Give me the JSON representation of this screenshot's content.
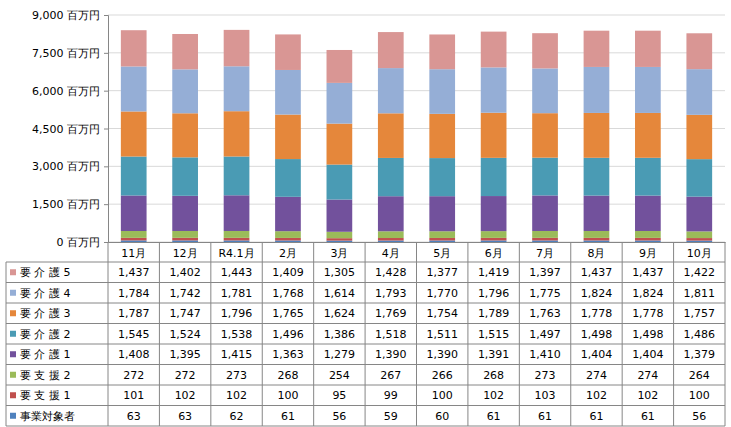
{
  "chart_data": {
    "type": "bar",
    "stacked": true,
    "grid": true,
    "legend": "bottom",
    "categories": [
      "11月",
      "12月",
      "R4.1月",
      "2月",
      "3月",
      "4月",
      "5月",
      "6月",
      "7月",
      "8月",
      "9月",
      "10月"
    ],
    "ylim": [
      0,
      9000
    ],
    "yticks": [
      {
        "value": 0,
        "label": "0 百万円"
      },
      {
        "value": 1500,
        "label": "1,500 百万円"
      },
      {
        "value": 3000,
        "label": "3,000 百万円"
      },
      {
        "value": 4500,
        "label": "4,500 百万円"
      },
      {
        "value": 6000,
        "label": "6,000 百万円"
      },
      {
        "value": 7500,
        "label": "7,500 百万円"
      },
      {
        "value": 9000,
        "label": "9,000 百万円"
      }
    ],
    "series": [
      {
        "name": "事業対象者",
        "color": "#4f81bd",
        "values": [
          63,
          63,
          62,
          61,
          56,
          59,
          60,
          61,
          61,
          61,
          61,
          56
        ],
        "value_labels": [
          "63",
          "63",
          "62",
          "61",
          "56",
          "59",
          "60",
          "61",
          "61",
          "61",
          "61",
          "56"
        ]
      },
      {
        "name": "要 支 援 1",
        "color": "#c0504d",
        "values": [
          101,
          102,
          102,
          100,
          95,
          99,
          100,
          102,
          103,
          102,
          102,
          100
        ],
        "value_labels": [
          "101",
          "102",
          "102",
          "100",
          "95",
          "99",
          "100",
          "102",
          "103",
          "102",
          "102",
          "100"
        ]
      },
      {
        "name": "要 支 援 2",
        "color": "#9bbb59",
        "values": [
          272,
          272,
          273,
          268,
          254,
          267,
          266,
          268,
          273,
          274,
          274,
          264
        ],
        "value_labels": [
          "272",
          "272",
          "273",
          "268",
          "254",
          "267",
          "266",
          "268",
          "273",
          "274",
          "274",
          "264"
        ]
      },
      {
        "name": "要 介 護 1",
        "color": "#72519c",
        "values": [
          1408,
          1395,
          1415,
          1363,
          1279,
          1390,
          1390,
          1391,
          1410,
          1404,
          1404,
          1379
        ],
        "value_labels": [
          "1,408",
          "1,395",
          "1,415",
          "1,363",
          "1,279",
          "1,390",
          "1,390",
          "1,391",
          "1,410",
          "1,404",
          "1,404",
          "1,379"
        ]
      },
      {
        "name": "要 介 護 2",
        "color": "#4a9bb4",
        "values": [
          1545,
          1524,
          1538,
          1496,
          1386,
          1518,
          1511,
          1515,
          1497,
          1498,
          1498,
          1486
        ],
        "value_labels": [
          "1,545",
          "1,524",
          "1,538",
          "1,496",
          "1,386",
          "1,518",
          "1,511",
          "1,515",
          "1,497",
          "1,498",
          "1,498",
          "1,486"
        ]
      },
      {
        "name": "要 介 護 3",
        "color": "#e5873b",
        "values": [
          1787,
          1747,
          1796,
          1765,
          1624,
          1769,
          1754,
          1789,
          1763,
          1778,
          1778,
          1757
        ],
        "value_labels": [
          "1,787",
          "1,747",
          "1,796",
          "1,765",
          "1,624",
          "1,769",
          "1,754",
          "1,789",
          "1,763",
          "1,778",
          "1,778",
          "1,757"
        ]
      },
      {
        "name": "要 介 護 4",
        "color": "#95aed6",
        "values": [
          1784,
          1742,
          1781,
          1768,
          1614,
          1793,
          1770,
          1796,
          1775,
          1824,
          1824,
          1811
        ],
        "value_labels": [
          "1,784",
          "1,742",
          "1,781",
          "1,768",
          "1,614",
          "1,793",
          "1,770",
          "1,796",
          "1,775",
          "1,824",
          "1,824",
          "1,811"
        ]
      },
      {
        "name": "要 介 護 5",
        "color": "#d99694",
        "values": [
          1437,
          1402,
          1443,
          1409,
          1305,
          1428,
          1377,
          1419,
          1397,
          1437,
          1437,
          1422
        ],
        "value_labels": [
          "1,437",
          "1,402",
          "1,443",
          "1,409",
          "1,305",
          "1,428",
          "1,377",
          "1,419",
          "1,397",
          "1,437",
          "1,437",
          "1,422"
        ]
      }
    ]
  }
}
